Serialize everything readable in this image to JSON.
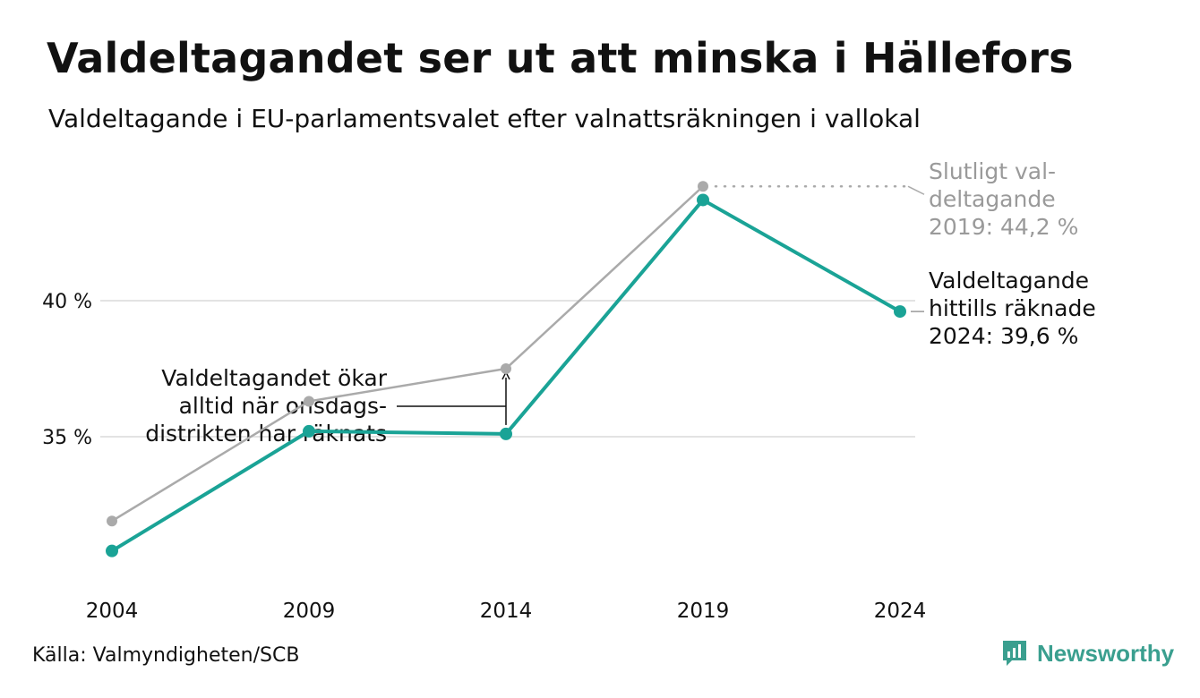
{
  "header": {
    "title": "Valdeltagandet ser ut att minska i Hällefors",
    "subtitle": "Valdeltagande i EU-parlamentsvalet efter valnattsräkningen i vallokal"
  },
  "footer": {
    "source": "Källa: Valmyndigheten/SCB",
    "brand": "Newsworthy"
  },
  "colors": {
    "counted": "#1aa396",
    "final": "#aaaaaa",
    "grid": "#e3e3e3",
    "text": "#111111",
    "muted": "#9a9a9a"
  },
  "chart_data": {
    "type": "line",
    "title": "Valdeltagandet ser ut att minska i Hällefors",
    "subtitle": "Valdeltagande i EU-parlamentsvalet efter valnattsräkningen i vallokal",
    "categories": [
      "2004",
      "2009",
      "2014",
      "2019",
      "2024"
    ],
    "series": [
      {
        "name": "Valdeltagande hittills räknade",
        "values": [
          30.8,
          35.2,
          35.1,
          43.7,
          39.6
        ]
      },
      {
        "name": "Slutligt valdeltagande",
        "values": [
          31.9,
          36.3,
          37.5,
          44.2,
          null
        ]
      }
    ],
    "y_ticks": [
      35,
      40
    ],
    "y_tick_labels": [
      "35 %",
      "40 %"
    ],
    "ylim": [
      30.0,
      44.8
    ],
    "grid": true,
    "annotations": {
      "final_2019": [
        "Slutligt val-",
        "deltagande",
        "2019: 44,2 %"
      ],
      "current_2024": [
        "Valdeltagande",
        "hittills räknade",
        "2024: 39,6 %"
      ],
      "increase_note": [
        "Valdeltagandet ökar",
        "alltid när onsdags-",
        "distrikten har räknats"
      ]
    }
  }
}
